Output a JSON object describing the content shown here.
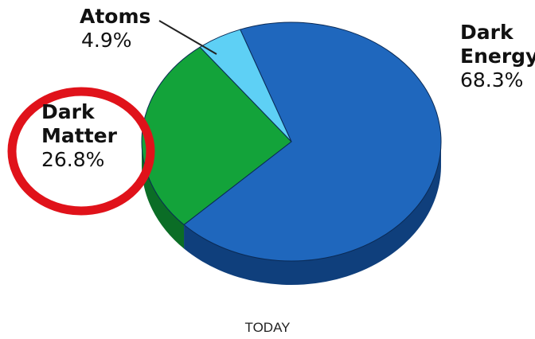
{
  "chart_data": {
    "type": "pie",
    "style": "3d",
    "slices": [
      {
        "label": "Dark Energy",
        "value": 68.3,
        "value_label": "68.3%",
        "color": "#1f67bd",
        "side_color": "#0f3f7c"
      },
      {
        "label": "Dark Matter",
        "value": 26.8,
        "value_label": "26.8%",
        "color": "#13a33a",
        "side_color": "#0b6d26"
      },
      {
        "label": "Atoms",
        "value": 4.9,
        "value_label": "4.9%",
        "color": "#5ed0f5",
        "side_color": "#3aa6cc"
      }
    ],
    "caption": "TODAY",
    "annotations": [
      {
        "type": "circle-highlight",
        "target": "Dark Matter",
        "color": "#e0121a"
      },
      {
        "type": "leader-line",
        "target": "Atoms",
        "color": "#222222"
      }
    ]
  }
}
